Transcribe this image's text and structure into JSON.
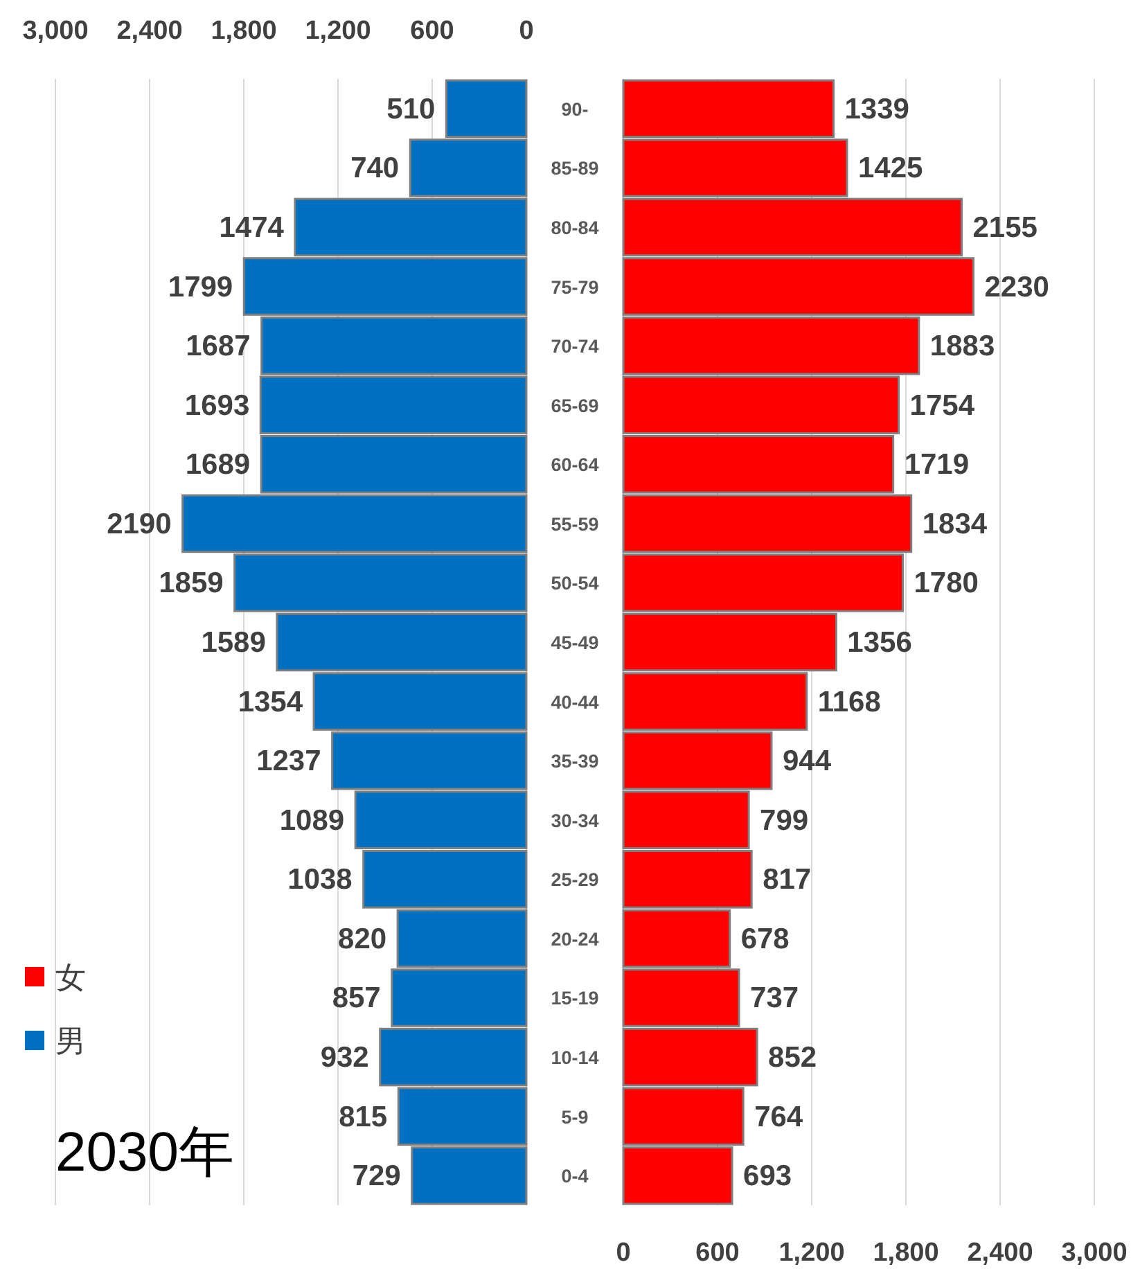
{
  "chart_data": [
    {
      "type": "bar",
      "orientation": "horizontal",
      "categories": [
        "90-",
        "85-89",
        "80-84",
        "75-79",
        "70-74",
        "65-69",
        "60-64",
        "55-59",
        "50-54",
        "45-49",
        "40-44",
        "35-39",
        "30-34",
        "25-29",
        "20-24",
        "15-19",
        "10-14",
        "5-9",
        "0-4"
      ],
      "series": [
        {
          "name": "男",
          "color": "#0070c0",
          "values": [
            510,
            740,
            1474,
            1799,
            1687,
            1693,
            1689,
            2190,
            1859,
            1589,
            1354,
            1237,
            1089,
            1038,
            820,
            857,
            932,
            815,
            729
          ]
        }
      ],
      "xlim": [
        3000,
        0
      ],
      "xticks": [
        {
          "value": 3000,
          "label": "3,000"
        },
        {
          "value": 2400,
          "label": "2,400"
        },
        {
          "value": 1800,
          "label": "1,800"
        },
        {
          "value": 1200,
          "label": "1,200"
        },
        {
          "value": 600,
          "label": "600"
        },
        {
          "value": 0,
          "label": "0"
        }
      ],
      "grid": "x",
      "data_labels": true,
      "legend": "bottom left",
      "annotations": [
        "2030年"
      ]
    },
    {
      "type": "bar",
      "orientation": "horizontal",
      "categories": [
        null,
        null,
        null,
        null,
        null,
        null,
        null,
        null,
        null,
        null,
        null,
        null,
        null,
        null,
        null,
        null,
        null,
        null,
        null
      ],
      "series": [
        {
          "name": "女",
          "color": "#ff0000",
          "values": [
            1339,
            1425,
            2155,
            2230,
            1883,
            1754,
            1719,
            1834,
            1780,
            1356,
            1168,
            944,
            799,
            817,
            678,
            737,
            852,
            764,
            693
          ]
        }
      ],
      "xlim": [
        0,
        3000
      ],
      "xticks": [
        {
          "value": 0,
          "label": "0"
        },
        {
          "value": 600,
          "label": "600"
        },
        {
          "value": 1200,
          "label": "1,200"
        },
        {
          "value": 1800,
          "label": "1,800"
        },
        {
          "value": 2400,
          "label": "2,400"
        },
        {
          "value": 3000,
          "label": "3,000"
        }
      ],
      "grid": "x",
      "data_labels": true
    }
  ]
}
